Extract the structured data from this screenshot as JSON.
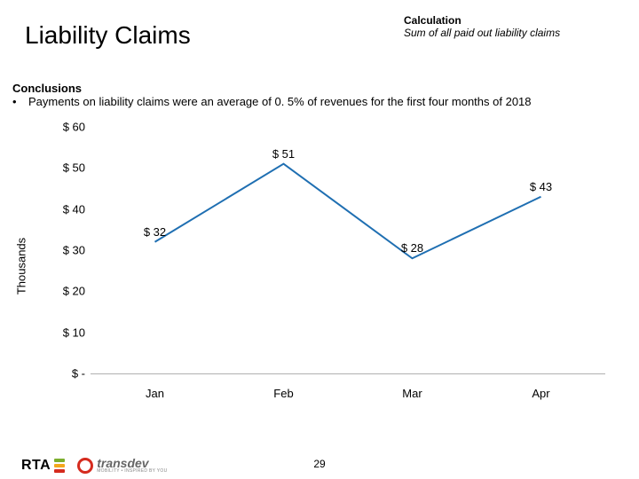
{
  "title": "Liability Claims",
  "calculation": {
    "heading": "Calculation",
    "body": "Sum of all paid out liability claims"
  },
  "conclusions": {
    "heading": "Conclusions",
    "bullet_char": "•",
    "items": [
      "Payments on liability claims were an average of 0. 5% of revenues for the first four months of 2018"
    ]
  },
  "chart": {
    "type": "line",
    "y_axis_label": "Thousands",
    "ylim": [
      0,
      60
    ],
    "ytick_step": 10,
    "ytick_labels": [
      "$ -",
      "$ 10",
      "$ 20",
      "$ 30",
      "$ 40",
      "$ 50",
      "$ 60"
    ],
    "categories": [
      "Jan",
      "Feb",
      "Mar",
      "Apr"
    ],
    "values": [
      32,
      51,
      28,
      43
    ],
    "data_labels": [
      "$ 32",
      "$ 51",
      "$ 28",
      "$ 43"
    ],
    "line_color": "#1f6fb2",
    "line_width": 2,
    "baseline_color": "#b0b0b0",
    "background_color": "#ffffff",
    "axis_font_size": 13,
    "data_label_font_size": 13
  },
  "footer": {
    "rta_text": "RTA",
    "rta_flair_colors": [
      "#7cae2e",
      "#f3a71c",
      "#d52b1e"
    ],
    "transdev_text": "transdev",
    "transdev_sub": "MOBILITY • INSPIRED BY YOU",
    "transdev_circle_color": "#d52b1e"
  },
  "page_number": "29"
}
